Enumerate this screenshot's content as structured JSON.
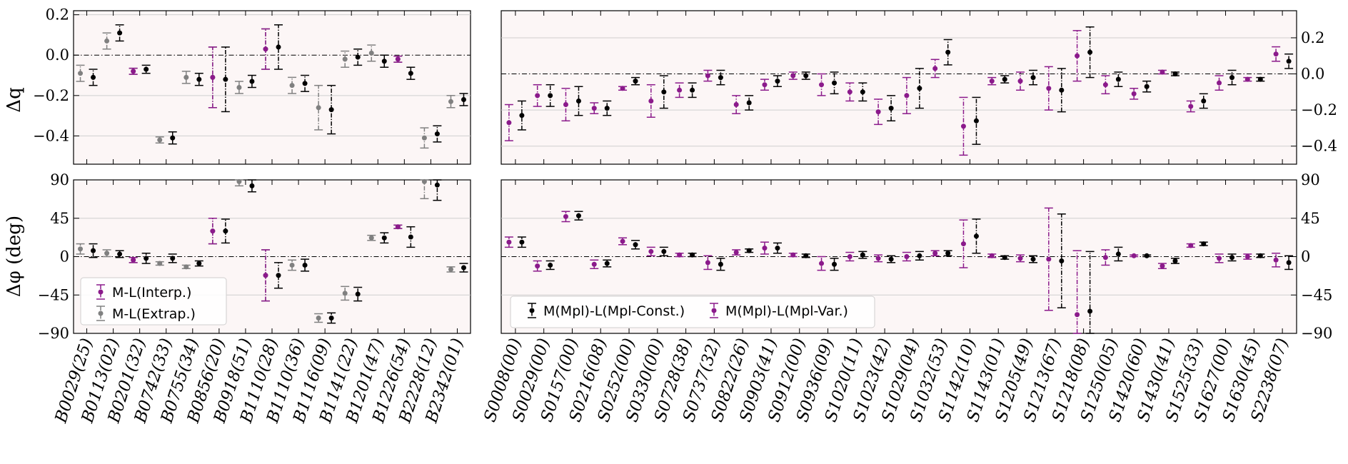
{
  "chart_data": [
    {
      "type": "scatter",
      "ylabel": "Δq",
      "ylim": [
        -0.54,
        0.22
      ],
      "yticks": [
        0.2,
        0.0,
        -0.2,
        -0.4
      ],
      "ytick_labels": [
        "0.2",
        "0.0",
        "−0.2",
        "−0.4"
      ],
      "categories": [
        "B0029(25)",
        "B0113(02)",
        "B0201(32)",
        "B0742(33)",
        "B0755(34)",
        "B0856(20)",
        "B0918(51)",
        "B1110(28)",
        "B1110(36)",
        "B1116(09)",
        "B1141(22)",
        "B1201(47)",
        "B1226(54)",
        "B2228(12)",
        "B2342(01)"
      ],
      "series": [
        {
          "name": "M-L(Extrap.)",
          "color": "#808080",
          "cat_idx": [
            0,
            1,
            2,
            3,
            4,
            5,
            6,
            7,
            8,
            9,
            10,
            11,
            12,
            13,
            14
          ],
          "values": [
            -0.09,
            0.07,
            -0.08,
            -0.42,
            -0.11,
            -0.11,
            -0.16,
            0.03,
            -0.15,
            -0.26,
            -0.02,
            0.01,
            -0.02,
            -0.41,
            -0.23
          ],
          "err": [
            0.04,
            0.04,
            0.015,
            0.015,
            0.03,
            0.15,
            0.03,
            0.1,
            0.04,
            0.11,
            0.04,
            0.04,
            0.015,
            0.05,
            0.03
          ]
        },
        {
          "name": "M-L(Interp.)",
          "color": "#8b1a8b",
          "cat_idx": [
            2,
            5,
            7,
            12
          ],
          "values": [
            -0.08,
            -0.11,
            0.03,
            -0.02
          ],
          "err": [
            0.015,
            0.15,
            0.1,
            0.015
          ]
        },
        {
          "name": "M(Mpl)-L(Mpl-Const.)",
          "color": "#000000",
          "cat_idx": [
            0,
            1,
            2,
            3,
            4,
            5,
            6,
            7,
            8,
            9,
            10,
            11,
            12,
            13,
            14
          ],
          "values": [
            -0.11,
            0.11,
            -0.07,
            -0.41,
            -0.12,
            -0.12,
            -0.13,
            0.04,
            -0.14,
            -0.27,
            -0.01,
            -0.03,
            -0.09,
            -0.39,
            -0.22
          ],
          "err": [
            0.04,
            0.04,
            0.02,
            0.03,
            0.03,
            0.16,
            0.03,
            0.11,
            0.04,
            0.12,
            0.04,
            0.03,
            0.03,
            0.04,
            0.03
          ]
        }
      ]
    },
    {
      "type": "scatter",
      "ylim": [
        -0.5,
        0.35
      ],
      "yticks": [
        0.2,
        0.0,
        -0.2,
        -0.4
      ],
      "ytick_labels": [
        "0.2",
        "0.0",
        "−0.2",
        "−0.4"
      ],
      "categories": [
        "S0008(00)",
        "S0029(00)",
        "S0157(00)",
        "S0216(08)",
        "S0252(00)",
        "S0330(00)",
        "S0728(38)",
        "S0737(32)",
        "S0822(26)",
        "S0903(41)",
        "S0912(00)",
        "S0936(09)",
        "S1020(11)",
        "S1023(42)",
        "S1029(04)",
        "S1032(53)",
        "S1142(10)",
        "S1143(01)",
        "S1205(49)",
        "S1213(67)",
        "S1218(08)",
        "S1250(05)",
        "S1420(60)",
        "S1430(41)",
        "S1525(33)",
        "S1627(00)",
        "S1630(45)",
        "S2238(07)"
      ],
      "series": [
        {
          "name": "M(Mpl)-L(Mpl-Var.)",
          "color": "#8b1a8b",
          "values": [
            -0.27,
            -0.12,
            -0.17,
            -0.19,
            -0.08,
            -0.15,
            -0.09,
            -0.01,
            -0.17,
            -0.06,
            -0.01,
            -0.06,
            -0.1,
            -0.21,
            -0.12,
            0.03,
            -0.29,
            -0.04,
            -0.04,
            -0.08,
            0.1,
            -0.06,
            -0.11,
            0.01,
            -0.18,
            -0.05,
            -0.03,
            0.11
          ],
          "err": [
            0.1,
            0.06,
            0.09,
            0.03,
            0.01,
            0.09,
            0.04,
            0.03,
            0.05,
            0.03,
            0.02,
            0.06,
            0.05,
            0.07,
            0.1,
            0.05,
            0.16,
            0.02,
            0.05,
            0.12,
            0.14,
            0.05,
            0.03,
            0.01,
            0.03,
            0.04,
            0.01,
            0.04
          ]
        },
        {
          "name": "M(Mpl)-L(Mpl-Const.)",
          "color": "#000000",
          "values": [
            -0.23,
            -0.12,
            -0.15,
            -0.19,
            -0.04,
            -0.1,
            -0.09,
            -0.02,
            -0.16,
            -0.04,
            -0.01,
            -0.05,
            -0.1,
            -0.19,
            -0.08,
            0.12,
            -0.26,
            -0.03,
            -0.02,
            -0.09,
            0.12,
            -0.03,
            -0.07,
            0,
            -0.15,
            -0.02,
            -0.03,
            0.07
          ],
          "err": [
            0.08,
            0.06,
            0.08,
            0.04,
            0.02,
            0.09,
            0.04,
            0.04,
            0.04,
            0.03,
            0.02,
            0.06,
            0.05,
            0.07,
            0.11,
            0.07,
            0.13,
            0.02,
            0.04,
            0.12,
            0.14,
            0.04,
            0.03,
            0.01,
            0.04,
            0.04,
            0.01,
            0.04
          ]
        }
      ]
    },
    {
      "type": "scatter",
      "ylabel": "Δφ (deg)",
      "ylim": [
        -90,
        90
      ],
      "yticks": [
        90,
        45,
        0,
        -45,
        -90
      ],
      "ytick_labels": [
        "90",
        "45",
        "0",
        "−45",
        "−90"
      ],
      "categories": [
        "B0029(25)",
        "B0113(02)",
        "B0201(32)",
        "B0742(33)",
        "B0755(34)",
        "B0856(20)",
        "B0918(51)",
        "B1110(28)",
        "B1110(36)",
        "B1116(09)",
        "B1141(22)",
        "B1201(47)",
        "B1226(54)",
        "B2228(12)",
        "B2342(01)"
      ],
      "legend": [
        "M-L(Interp.)",
        "M-L(Extrap.)"
      ],
      "legend_loc": "lower-left",
      "series": [
        {
          "name": "M-L(Extrap.)",
          "color": "#808080",
          "cat_idx": [
            0,
            1,
            2,
            3,
            4,
            5,
            6,
            7,
            8,
            9,
            10,
            11,
            12,
            13,
            14
          ],
          "values": [
            9,
            4,
            -4,
            -8,
            -12,
            30,
            88,
            -22,
            -10,
            -72,
            -43,
            22,
            35,
            88,
            -15
          ],
          "err": [
            6,
            4,
            3,
            2,
            2,
            15,
            5,
            30,
            6,
            5,
            8,
            3,
            2,
            20,
            3
          ]
        },
        {
          "name": "M-L(Interp.)",
          "color": "#8b1a8b",
          "cat_idx": [
            2,
            5,
            7,
            12
          ],
          "values": [
            -4,
            30,
            -22,
            35
          ],
          "err": [
            3,
            15,
            30,
            2
          ]
        },
        {
          "name": "M(Mpl)-L(Mpl-Const.)",
          "color": "#000000",
          "cat_idx": [
            0,
            1,
            2,
            3,
            4,
            5,
            6,
            7,
            8,
            9,
            10,
            11,
            12,
            13,
            14
          ],
          "values": [
            7,
            3,
            -2,
            -2,
            -8,
            30,
            83,
            -22,
            -10,
            -72,
            -44,
            22,
            23,
            84,
            -13
          ],
          "err": [
            8,
            4,
            6,
            5,
            3,
            14,
            7,
            15,
            7,
            6,
            8,
            6,
            12,
            18,
            5
          ]
        }
      ]
    },
    {
      "type": "scatter",
      "ylim": [
        -90,
        90
      ],
      "yticks": [
        90,
        45,
        0,
        -45,
        -90
      ],
      "ytick_labels": [
        "90",
        "45",
        "0",
        "−45",
        "−90"
      ],
      "categories": [
        "S0008(00)",
        "S0029(00)",
        "S0157(00)",
        "S0216(08)",
        "S0252(00)",
        "S0330(00)",
        "S0728(38)",
        "S0737(32)",
        "S0822(26)",
        "S0903(41)",
        "S0912(00)",
        "S0936(09)",
        "S1020(11)",
        "S1023(42)",
        "S1029(04)",
        "S1032(53)",
        "S1142(10)",
        "S1143(01)",
        "S1205(49)",
        "S1213(67)",
        "S1218(08)",
        "S1250(05)",
        "S1420(60)",
        "S1430(41)",
        "S1525(33)",
        "S1627(00)",
        "S1630(45)",
        "S2238(07)"
      ],
      "legend": [
        "M(Mpl)-L(Mpl-Const.)",
        "M(Mpl)-L(Mpl-Var.)"
      ],
      "legend_loc": "lower-left",
      "series": [
        {
          "name": "M(Mpl)-L(Mpl-Var.)",
          "color": "#8b1a8b",
          "values": [
            17,
            -11,
            47,
            -9,
            18,
            6,
            2,
            -7,
            5,
            10,
            2,
            -8,
            0,
            -2,
            0,
            4,
            15,
            1,
            -2,
            -3,
            -68,
            -1,
            1,
            -11,
            13,
            -2,
            0,
            -4
          ],
          "err": [
            6,
            6,
            6,
            5,
            4,
            5,
            2,
            8,
            3,
            7,
            2,
            8,
            5,
            4,
            5,
            3,
            28,
            2,
            4,
            60,
            75,
            9,
            1,
            3,
            2,
            5,
            3,
            8
          ]
        },
        {
          "name": "M(Mpl)-L(Mpl-Const.)",
          "color": "#000000",
          "values": [
            17,
            -10,
            48,
            -8,
            14,
            6,
            2,
            -9,
            7,
            10,
            1,
            -9,
            2,
            -3,
            1,
            4,
            24,
            -1,
            -3,
            -5,
            -64,
            3,
            1,
            -5,
            15,
            -1,
            1,
            -7
          ],
          "err": [
            6,
            5,
            5,
            4,
            5,
            5,
            2,
            7,
            2,
            6,
            2,
            7,
            4,
            4,
            5,
            3,
            20,
            2,
            4,
            55,
            70,
            8,
            1,
            3,
            2,
            4,
            2,
            8
          ]
        }
      ]
    }
  ]
}
